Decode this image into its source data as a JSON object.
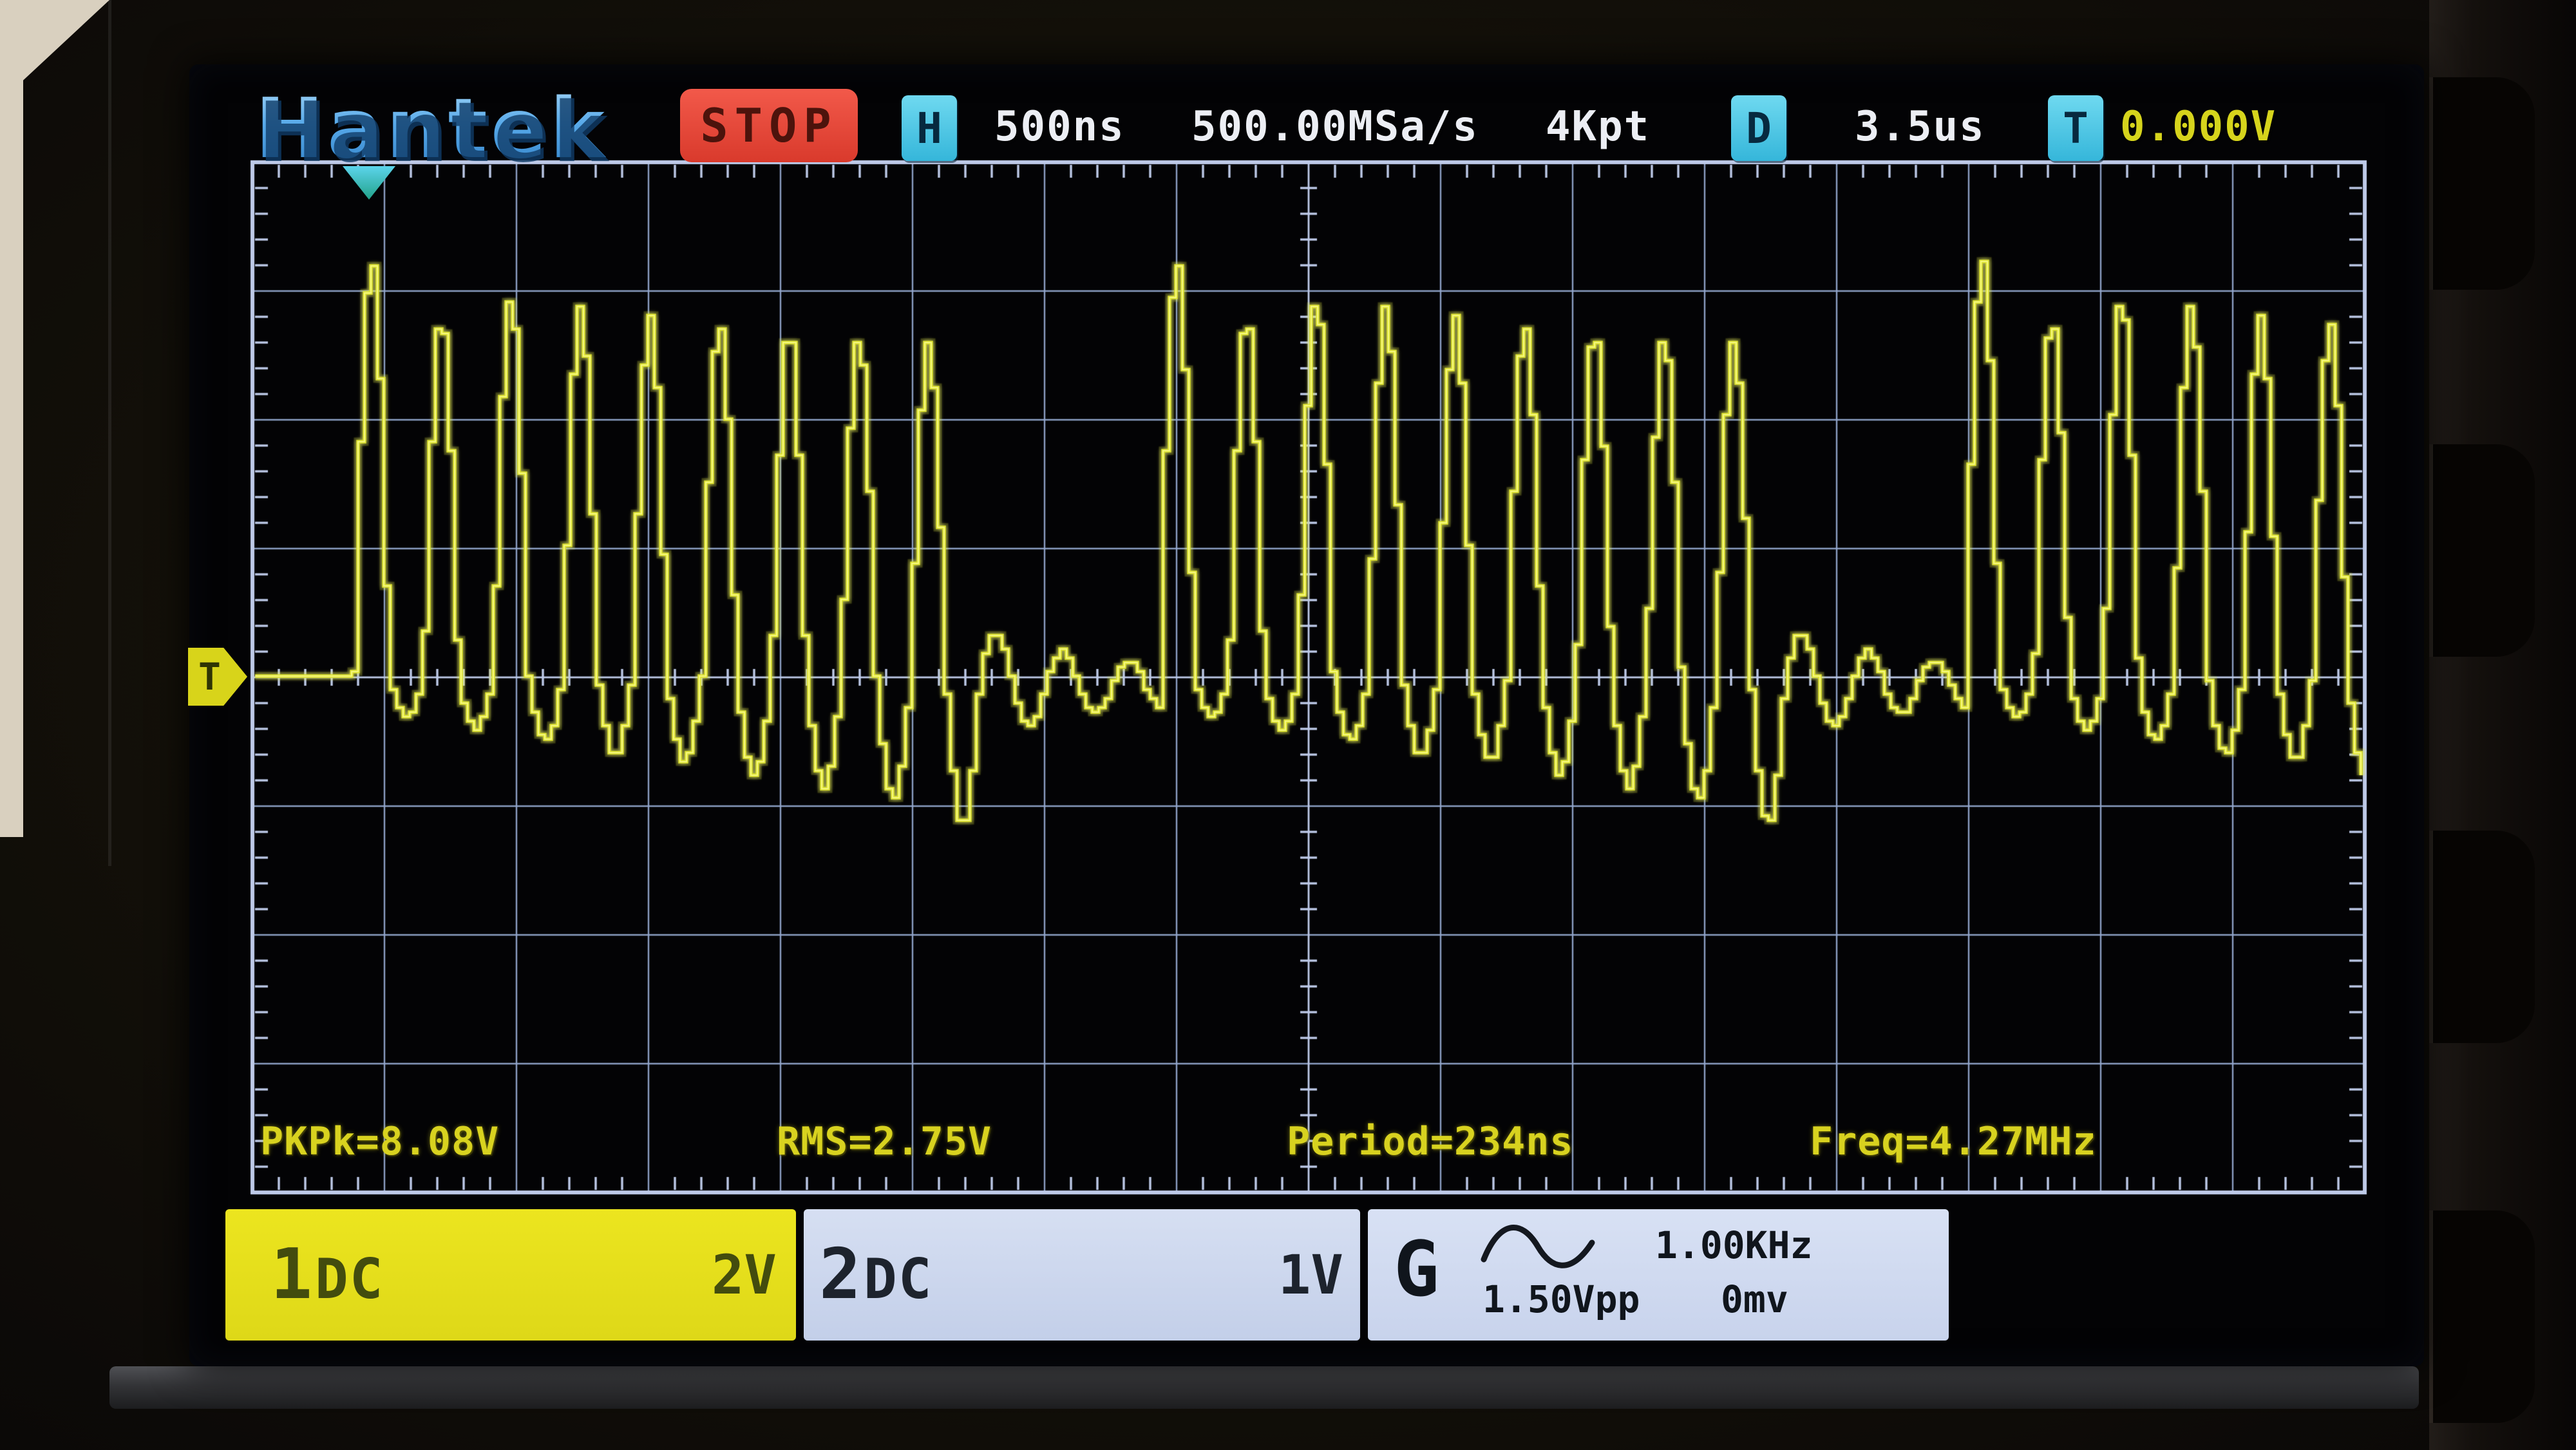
{
  "top_bar": {
    "brand": "Hantek",
    "run_state": "STOP",
    "horizontal_badge": "H",
    "timebase": "500ns",
    "sample_rate": "500.00MSa/s",
    "record_length": "4Kpt",
    "delay_badge": "D",
    "delay_time": "3.5us",
    "trigger_badge": "T",
    "trigger_level": "0.000V"
  },
  "measurements": {
    "pkpk": "PKPk=8.08V",
    "rms": "RMS=2.75V",
    "period": "Period=234ns",
    "freq": "Freq=4.27MHz"
  },
  "channel1": {
    "number": "1",
    "coupling": "DC",
    "volts_per_div": "2V"
  },
  "channel2": {
    "number": "2",
    "coupling": "DC",
    "volts_per_div": "1V"
  },
  "generator": {
    "label": "G",
    "waveform_icon": "sine-wave-icon",
    "frequency": "1.00KHz",
    "amplitude": "1.50Vpp",
    "offset": "0mv"
  },
  "markers": {
    "trigger_level_label": "T"
  },
  "graticule": {
    "h_divisions": 16,
    "v_divisions": 8,
    "minor_per_div": 5
  },
  "colors": {
    "grid_line": "rgba(148,168,206,0.95)",
    "grid_border": "rgba(190,202,232,1)",
    "waveform": "#e0e52f",
    "waveform_core": "#f6f882",
    "accent_blue": "#55a9e8",
    "stop_red": "#e2463a",
    "badge_cyan": "#45c6e6",
    "value_yellow": "#d6d41c",
    "ch1_yellow": "#e4de25",
    "ch2_blue": "#cdd7ef"
  },
  "chart_data": {
    "type": "line",
    "title": "CH1 repetitive sine burst",
    "xlabel": "time: 500ns/div, 16 divisions, delay 3.5us",
    "ylabel": "CH1: 2V/div, 8 divisions, trigger level 0.000V",
    "x_range_div": [
      0,
      16
    ],
    "y_range_div": [
      -4,
      4
    ],
    "measured": {
      "pkpk_v": 8.08,
      "rms_v": 2.75,
      "period_ns": 234,
      "freq_mhz": 4.27
    },
    "waveform_model": {
      "flat_until_div": 0.75,
      "burst_period_div": 6.1,
      "carrier_cycle_div": 0.527,
      "peak_amplitudes_div": [
        3.25,
        2.8,
        2.95,
        2.9,
        2.8,
        2.75,
        2.7,
        2.65,
        2.6
      ],
      "trough_amplitudes_div": [
        0.3,
        0.4,
        0.5,
        0.6,
        0.65,
        0.75,
        0.85,
        0.95,
        1.05
      ],
      "final_trough_div": 1.15,
      "ripple_cycle_div": 0.5,
      "ripple_start_amplitude_div": 0.4,
      "ripple_decay_per_cycle": 0.72,
      "ripple_offset_div": -0.06
    }
  }
}
